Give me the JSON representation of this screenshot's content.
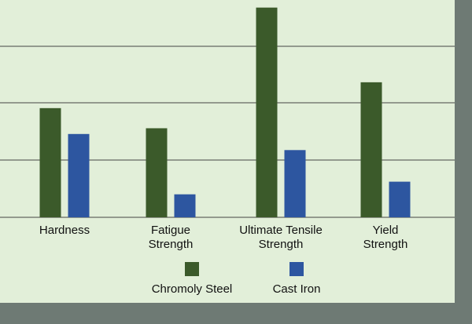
{
  "chart_data": {
    "type": "bar",
    "categories": [
      [
        "Hardness"
      ],
      [
        "Fatigue",
        "Strength"
      ],
      [
        "Ultimate Tensile",
        "Strength"
      ],
      [
        "Yield",
        "Strength"
      ]
    ],
    "series": [
      {
        "name": "Chromoly Steel",
        "color": "#3b5a2a",
        "values": [
          1.9,
          1.55,
          3.65,
          2.35
        ]
      },
      {
        "name": "Cast Iron",
        "color": "#2d56a0",
        "values": [
          1.45,
          0.4,
          1.17,
          0.62
        ]
      }
    ],
    "ylim": [
      0,
      3.7
    ],
    "grid": true,
    "legend_position": "bottom",
    "colors": {
      "background": "#e2efd9",
      "frame": "#6e7a74",
      "grid": "#444444"
    }
  }
}
